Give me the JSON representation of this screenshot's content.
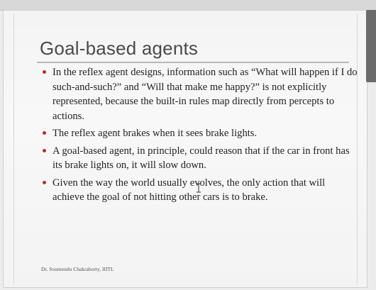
{
  "slide": {
    "title": "Goal-based agents",
    "bullets": [
      "In the reflex agent designs, information such as “What will happen if I do such-and-such?” and “Will that make me happy?” is not explicitly represented, because the built-in rules map directly from percepts to actions.",
      "The reflex agent brakes when it sees brake lights.",
      "A goal-based agent, in principle, could reason that if the car in front has its brake lights on, it will slow down.",
      "Given the way the world usually evolves, the only action that will achieve the goal of not hitting other cars is to brake."
    ],
    "footer": "Dr. Soumendu Chakraborty, IIITL"
  },
  "colors": {
    "bullet": "#b03030",
    "title": "#4a4a4a",
    "scroll_handle": "#6b6b6b"
  },
  "icons": {
    "cursor": "text-cursor-icon"
  }
}
